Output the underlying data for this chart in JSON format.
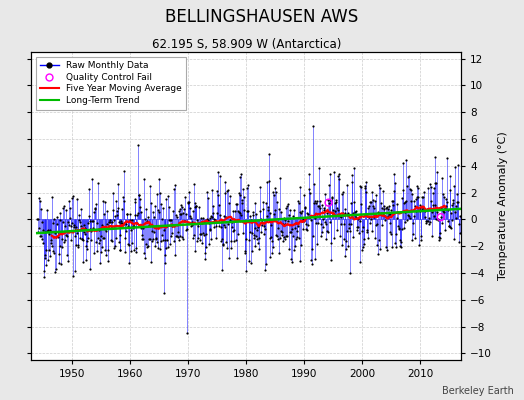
{
  "title": "BELLINGSHAUSEN AWS",
  "subtitle": "62.195 S, 58.909 W (Antarctica)",
  "ylabel": "Temperature Anomaly (°C)",
  "attribution": "Berkeley Earth",
  "ylim": [
    -10.5,
    12.5
  ],
  "xlim": [
    1943,
    2017
  ],
  "yticks": [
    -10,
    -8,
    -6,
    -4,
    -2,
    0,
    2,
    4,
    6,
    8,
    10,
    12
  ],
  "xticks": [
    1950,
    1960,
    1970,
    1980,
    1990,
    2000,
    2010
  ],
  "line_color": "#0000ff",
  "marker_color": "#000000",
  "moving_avg_color": "#ff0000",
  "trend_color": "#00bb00",
  "qc_fail_color": "#ff00ff",
  "background_color": "#e8e8e8",
  "plot_bg_color": "#ffffff",
  "seed": 42,
  "start_year": 1944.0,
  "end_year": 2016.9
}
